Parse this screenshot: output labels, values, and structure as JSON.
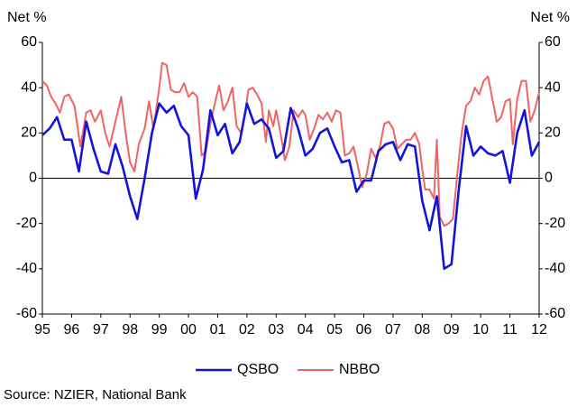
{
  "chart_data": {
    "type": "line",
    "ylabel": "Net %",
    "y2label": "Net %",
    "source": "Source: NZIER, National Bank",
    "xlim": [
      1995,
      2012
    ],
    "xticks": [
      {
        "value": 1995,
        "label": "95"
      },
      {
        "value": 1996,
        "label": "96"
      },
      {
        "value": 1997,
        "label": "97"
      },
      {
        "value": 1998,
        "label": "98"
      },
      {
        "value": 1999,
        "label": "99"
      },
      {
        "value": 2000,
        "label": "00"
      },
      {
        "value": 2001,
        "label": "01"
      },
      {
        "value": 2002,
        "label": "02"
      },
      {
        "value": 2003,
        "label": "03"
      },
      {
        "value": 2004,
        "label": "04"
      },
      {
        "value": 2005,
        "label": "05"
      },
      {
        "value": 2006,
        "label": "06"
      },
      {
        "value": 2007,
        "label": "07"
      },
      {
        "value": 2008,
        "label": "08"
      },
      {
        "value": 2009,
        "label": "09"
      },
      {
        "value": 2010,
        "label": "10"
      },
      {
        "value": 2011,
        "label": "11"
      },
      {
        "value": 2012,
        "label": "12"
      }
    ],
    "ylim": [
      -60,
      60
    ],
    "yticks": [
      -60,
      -40,
      -20,
      0,
      20,
      40,
      60
    ],
    "y2lim": [
      -60,
      60
    ],
    "y2ticks": [
      -60,
      -40,
      -20,
      0,
      20,
      40,
      60
    ],
    "legend": "bottom",
    "series": [
      {
        "name": "QSBO",
        "color": "#1414d8",
        "x": [
          1995,
          1995.25,
          1995.5,
          1995.75,
          1996,
          1996.25,
          1996.5,
          1996.75,
          1997,
          1997.25,
          1997.5,
          1997.75,
          1998,
          1998.25,
          1998.5,
          1998.75,
          1999,
          1999.25,
          1999.5,
          1999.75,
          2000,
          2000.25,
          2000.5,
          2000.75,
          2001,
          2001.25,
          2001.5,
          2001.75,
          2002,
          2002.25,
          2002.5,
          2002.75,
          2003,
          2003.25,
          2003.5,
          2003.75,
          2004,
          2004.25,
          2004.5,
          2004.75,
          2005,
          2005.25,
          2005.5,
          2005.75,
          2006,
          2006.25,
          2006.5,
          2006.75,
          2007,
          2007.25,
          2007.5,
          2007.75,
          2008,
          2008.25,
          2008.5,
          2008.75,
          2009,
          2009.25,
          2009.5,
          2009.75,
          2010,
          2010.25,
          2010.5,
          2010.75,
          2011,
          2011.25,
          2011.5,
          2011.75,
          2012
        ],
        "values": [
          19,
          22,
          27,
          17,
          17,
          3,
          25,
          13,
          3,
          2,
          15,
          5,
          -8,
          -18,
          0,
          20,
          33,
          29,
          32,
          23,
          19,
          -9,
          4,
          30,
          19,
          24,
          11,
          16,
          33,
          24,
          26,
          22,
          9,
          12,
          31,
          22,
          10,
          13,
          20,
          22,
          14,
          7,
          8,
          -6,
          -1,
          -1,
          12,
          15,
          16,
          8,
          15,
          14,
          -10,
          -23,
          -8,
          -40,
          -38,
          -5,
          23,
          10,
          14,
          11,
          10,
          12,
          -2,
          20,
          30,
          10,
          16
        ]
      },
      {
        "name": "NBBO",
        "color": "#f06464",
        "x": [
          1995,
          1995.15,
          1995.3,
          1995.45,
          1995.6,
          1995.75,
          1995.9,
          1996.1,
          1996.3,
          1996.5,
          1996.65,
          1996.8,
          1997,
          1997.15,
          1997.3,
          1997.5,
          1997.7,
          1997.85,
          1998,
          1998.15,
          1998.3,
          1998.5,
          1998.65,
          1998.8,
          1999,
          1999.1,
          1999.25,
          1999.4,
          1999.55,
          1999.7,
          1999.85,
          2000,
          2000.15,
          2000.3,
          2000.45,
          2000.6,
          2000.75,
          2000.9,
          2001.05,
          2001.2,
          2001.35,
          2001.5,
          2001.65,
          2001.8,
          2001.95,
          2002.05,
          2002.2,
          2002.35,
          2002.5,
          2002.65,
          2002.75,
          2002.9,
          2003,
          2003.15,
          2003.3,
          2003.45,
          2003.6,
          2003.75,
          2003.9,
          2004,
          2004.15,
          2004.3,
          2004.45,
          2004.6,
          2004.75,
          2004.9,
          2005.05,
          2005.2,
          2005.35,
          2005.5,
          2005.65,
          2005.8,
          2005.95,
          2006.1,
          2006.25,
          2006.4,
          2006.55,
          2006.7,
          2006.85,
          2007,
          2007.15,
          2007.3,
          2007.45,
          2007.6,
          2007.75,
          2007.9,
          2008,
          2008.1,
          2008.25,
          2008.4,
          2008.5,
          2008.6,
          2008.75,
          2008.9,
          2009.05,
          2009.2,
          2009.35,
          2009.5,
          2009.65,
          2009.8,
          2009.95,
          2010.1,
          2010.25,
          2010.4,
          2010.55,
          2010.7,
          2010.85,
          2011,
          2011.1,
          2011.25,
          2011.4,
          2011.55,
          2011.7,
          2011.85,
          2012
        ],
        "values": [
          43,
          41,
          36,
          33,
          29,
          36,
          37,
          32,
          14,
          29,
          30,
          25,
          30,
          20,
          14,
          25,
          36,
          20,
          7,
          3,
          15,
          22,
          34,
          22,
          40,
          51,
          50,
          39,
          38,
          38,
          42,
          36,
          38,
          36,
          10,
          12,
          24,
          33,
          41,
          30,
          34,
          40,
          23,
          20,
          30,
          39,
          40,
          37,
          33,
          16,
          30,
          23,
          30,
          20,
          8,
          14,
          30,
          27,
          30,
          28,
          17,
          22,
          28,
          26,
          29,
          25,
          30,
          29,
          10,
          11,
          14,
          5,
          -4,
          2,
          13,
          9,
          14,
          24,
          25,
          22,
          13,
          15,
          17,
          17,
          20,
          15,
          4,
          -5,
          -5,
          -9,
          17,
          -17,
          -21,
          -20,
          -18,
          2,
          20,
          32,
          34,
          40,
          37,
          43,
          45,
          35,
          25,
          27,
          34,
          35,
          15,
          35,
          43,
          43,
          25,
          30,
          38
        ]
      }
    ]
  }
}
